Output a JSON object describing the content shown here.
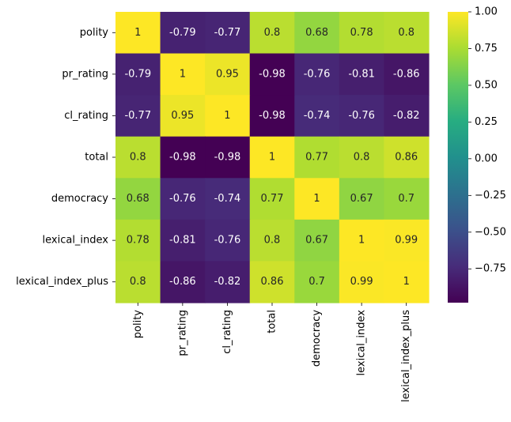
{
  "chart_data": {
    "type": "heatmap",
    "rows": [
      "polity",
      "pr_rating",
      "cl_rating",
      "total",
      "democracy",
      "lexical_index",
      "lexical_index_plus"
    ],
    "columns": [
      "polity",
      "pr_rating",
      "cl_rating",
      "total",
      "democracy",
      "lexical_index",
      "lexical_index_plus"
    ],
    "values": [
      [
        1,
        -0.79,
        -0.77,
        0.8,
        0.68,
        0.78,
        0.8
      ],
      [
        -0.79,
        1,
        0.95,
        -0.98,
        -0.76,
        -0.81,
        -0.86
      ],
      [
        -0.77,
        0.95,
        1,
        -0.98,
        -0.74,
        -0.76,
        -0.82
      ],
      [
        0.8,
        -0.98,
        -0.98,
        1,
        0.77,
        0.8,
        0.86
      ],
      [
        0.68,
        -0.76,
        -0.74,
        0.77,
        1,
        0.67,
        0.7
      ],
      [
        0.78,
        -0.81,
        -0.76,
        0.8,
        0.67,
        1,
        0.99
      ],
      [
        0.8,
        -0.86,
        -0.82,
        0.86,
        0.7,
        0.99,
        1
      ]
    ],
    "cell_labels": [
      [
        "1",
        "-0.79",
        "-0.77",
        "0.8",
        "0.68",
        "0.78",
        "0.8"
      ],
      [
        "-0.79",
        "1",
        "0.95",
        "-0.98",
        "-0.76",
        "-0.81",
        "-0.86"
      ],
      [
        "-0.77",
        "0.95",
        "1",
        "-0.98",
        "-0.74",
        "-0.76",
        "-0.82"
      ],
      [
        "0.8",
        "-0.98",
        "-0.98",
        "1",
        "0.77",
        "0.8",
        "0.86"
      ],
      [
        "0.68",
        "-0.76",
        "-0.74",
        "0.77",
        "1",
        "0.67",
        "0.7"
      ],
      [
        "0.78",
        "-0.81",
        "-0.76",
        "0.8",
        "0.67",
        "1",
        "0.99"
      ],
      [
        "0.8",
        "-0.86",
        "-0.82",
        "0.86",
        "0.7",
        "0.99",
        "1"
      ]
    ],
    "colormap": "viridis",
    "vmin": -0.98,
    "vmax": 1.0,
    "colorbar": {
      "ticks": [
        1.0,
        0.75,
        0.5,
        0.25,
        0.0,
        -0.25,
        -0.5,
        -0.75
      ],
      "tick_labels": [
        "1.00",
        "0.75",
        "0.50",
        "0.25",
        "0.00",
        "−0.25",
        "−0.50",
        "−0.75"
      ]
    },
    "colorbar_placement": "right",
    "grid": false,
    "annotation_light_color": "#ffffff",
    "annotation_dark_color": "#262626"
  }
}
